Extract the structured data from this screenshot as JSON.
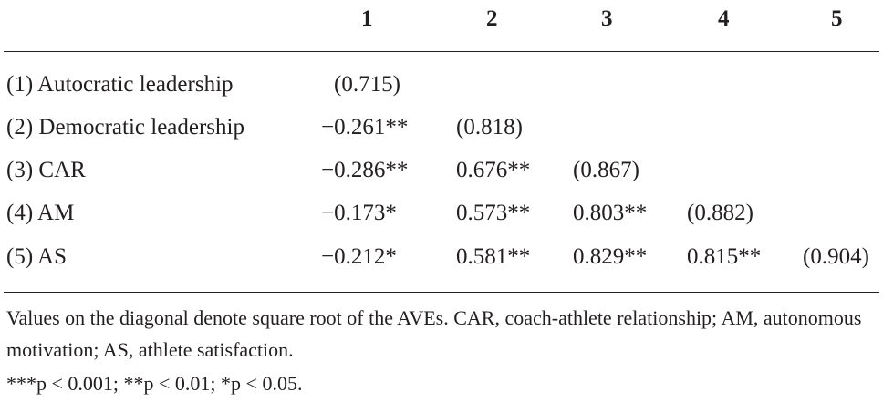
{
  "table": {
    "headers": [
      "1",
      "2",
      "3",
      "4",
      "5"
    ],
    "rows": [
      {
        "label": "(1) Autocratic leadership",
        "cells": [
          "(0.715)",
          "",
          "",
          "",
          ""
        ]
      },
      {
        "label": "(2) Democratic leadership",
        "cells": [
          "−0.261**",
          "(0.818)",
          "",
          "",
          ""
        ]
      },
      {
        "label": "(3) CAR",
        "cells": [
          "−0.286**",
          "0.676**",
          "(0.867)",
          "",
          ""
        ]
      },
      {
        "label": "(4) AM",
        "cells": [
          "−0.173*",
          "0.573**",
          "0.803**",
          "(0.882)",
          ""
        ]
      },
      {
        "label": "(5) AS",
        "cells": [
          "−0.212*",
          "0.581**",
          "0.829**",
          "0.815**",
          "(0.904)"
        ]
      }
    ]
  },
  "notes": {
    "definitions": "Values on the diagonal denote square root of the AVEs. CAR, coach-athlete relationship; AM, autonomous motivation; AS, athlete satisfaction.",
    "significance": "***p < 0.001; **p < 0.01; *p < 0.05."
  }
}
